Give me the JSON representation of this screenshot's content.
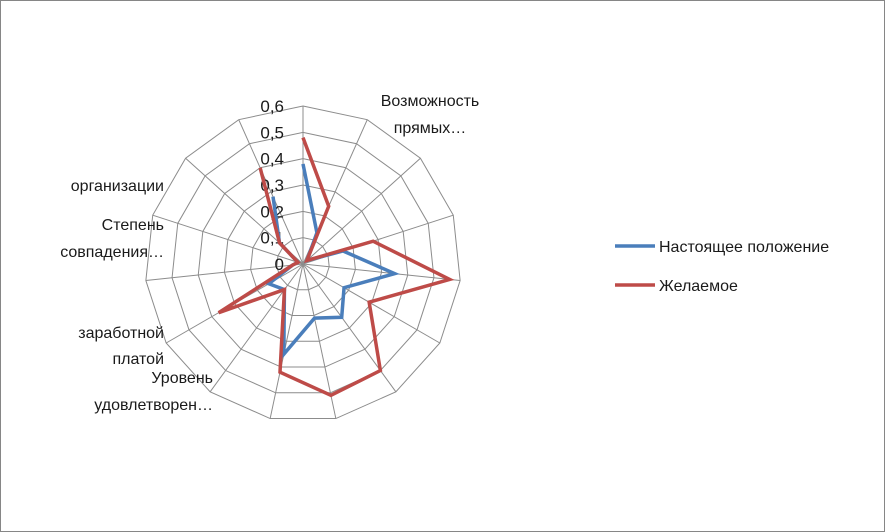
{
  "chart_data": {
    "type": "radar",
    "ticks": [
      "0",
      "0,1",
      "0,2",
      "0,3",
      "0,4",
      "0,5",
      "0,6"
    ],
    "rmax": 0.6,
    "categories": [
      "Возможность прямых…",
      "",
      "",
      "",
      "",
      "",
      "",
      "",
      "",
      "Уровень удовлетворен…",
      "заработной платой",
      "",
      "Степень совпадения…",
      "организации",
      ""
    ],
    "series": [
      {
        "name": "Настоящее положение",
        "color": "#4a7ebb",
        "values": [
          0.38,
          0.13,
          0.02,
          0.16,
          0.35,
          0.18,
          0.25,
          0.21,
          0.35,
          0.12,
          0.15,
          0.04,
          0.02,
          0.12,
          0.28
        ]
      },
      {
        "name": "Желаемое",
        "color": "#be4b48",
        "values": [
          0.48,
          0.24,
          0.02,
          0.28,
          0.56,
          0.29,
          0.5,
          0.51,
          0.42,
          0.12,
          0.37,
          0.04,
          0.02,
          0.12,
          0.4
        ]
      }
    ],
    "legend_position": "right"
  }
}
